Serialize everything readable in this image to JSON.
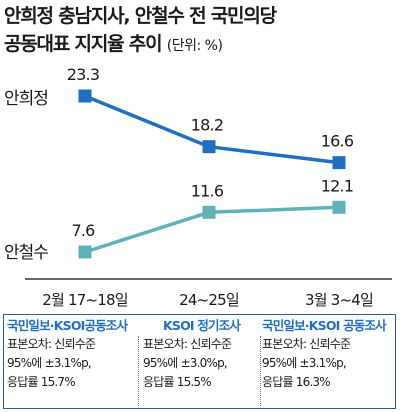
{
  "title_line1": "안희정 충남지사, 안철수 전 국민의당",
  "title_line2": "공동대표 지지율 추이",
  "unit": "(단위: %)",
  "chart_data": {
    "type": "line",
    "categories": [
      "2월 17~18일",
      "24~25일",
      "3월 3~4일"
    ],
    "series": [
      {
        "name": "안희정",
        "values": [
          23.3,
          18.2,
          16.6
        ],
        "color": "#1f6fc0"
      },
      {
        "name": "안철수",
        "values": [
          7.6,
          11.6,
          12.1
        ],
        "color": "#5fb3b8"
      }
    ],
    "grid": false,
    "value_labels": true
  },
  "sources": [
    {
      "agency": "국민일보·KSOI공동조사",
      "line1": "표본오차: 신뢰수준",
      "line2": "95%에 ±3.1%p,",
      "line3": "응답률 15.7%"
    },
    {
      "agency": "KSOI 정기조사",
      "line1": "표본오차: 신뢰수준",
      "line2": "95%에 ±3.0%p,",
      "line3": "응답률 15.5%"
    },
    {
      "agency": "국민일보·KSOI 공동조사",
      "line1": "표본오차: 신뢰수준",
      "line2": "95%에 ±3.1%p,",
      "line3": "응답률 16.3%"
    }
  ]
}
